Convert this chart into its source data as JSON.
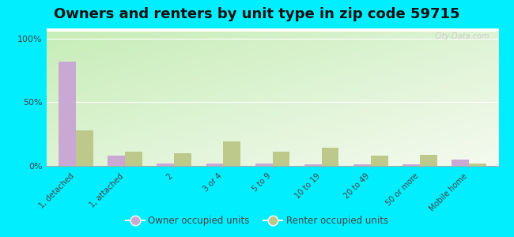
{
  "title": "Owners and renters by unit type in zip code 59715",
  "categories": [
    "1, detached",
    "1, attached",
    "2",
    "3 or 4",
    "5 to 9",
    "10 to 19",
    "20 to 49",
    "50 or more",
    "Mobile home"
  ],
  "owner_values": [
    82,
    8,
    2,
    2,
    2,
    1,
    1,
    1,
    5
  ],
  "renter_values": [
    28,
    11,
    10,
    19,
    11,
    14,
    8,
    9,
    2
  ],
  "owner_color": "#c9a8d4",
  "renter_color": "#bcc98a",
  "outer_bg": "#00eeff",
  "yticks": [
    0,
    50,
    100
  ],
  "ylabels": [
    "0%",
    "50%",
    "100%"
  ],
  "title_fontsize": 13,
  "bar_width": 0.35,
  "legend_owner": "Owner occupied units",
  "legend_renter": "Renter occupied units",
  "gradient_top_left": "#c8e6b0",
  "gradient_bottom_right": "#f0fae8"
}
